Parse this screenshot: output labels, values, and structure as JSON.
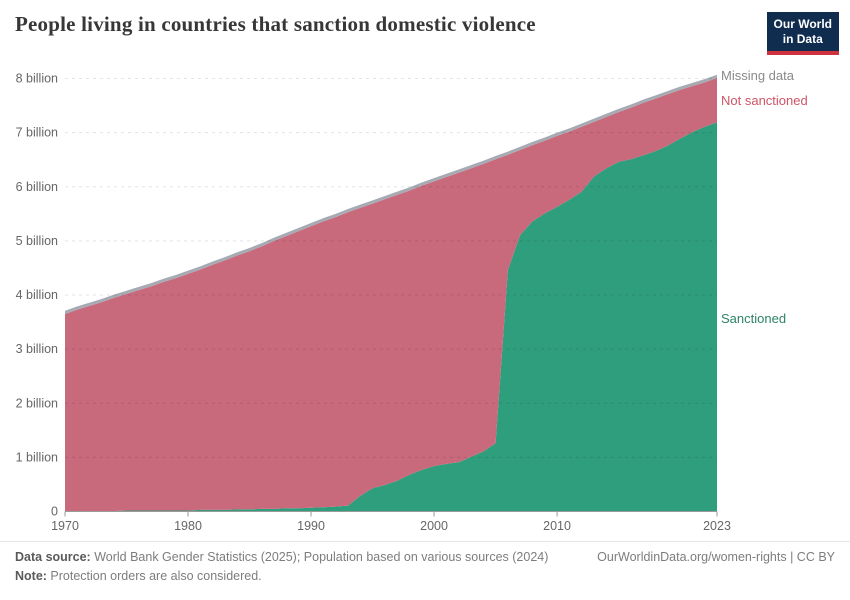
{
  "header": {
    "title": "People living in countries that sanction domestic violence",
    "logo_line1": "Our World",
    "logo_line2": "in Data"
  },
  "footer": {
    "data_source_label": "Data source:",
    "data_source_text": " World Bank Gender Statistics (2025); Population based on various sources (2024)",
    "note_label": "Note:",
    "note_text": " Protection orders are also considered.",
    "link_text": "OurWorldinData.org/women-rights | CC BY"
  },
  "chart_data": {
    "type": "area",
    "stacked": true,
    "title": "People living in countries that sanction domestic violence",
    "xlabel": "",
    "ylabel": "",
    "unit": "billion people",
    "grid": true,
    "legend_position": "right",
    "ylim": [
      0,
      8
    ],
    "xlim": [
      1970,
      2023
    ],
    "x_ticks": [
      1970,
      1980,
      1990,
      2000,
      2010,
      2023
    ],
    "y_ticks": [
      {
        "v": 0,
        "label": "0"
      },
      {
        "v": 1,
        "label": "1 billion"
      },
      {
        "v": 2,
        "label": "2 billion"
      },
      {
        "v": 3,
        "label": "3 billion"
      },
      {
        "v": 4,
        "label": "4 billion"
      },
      {
        "v": 5,
        "label": "5 billion"
      },
      {
        "v": 6,
        "label": "6 billion"
      },
      {
        "v": 7,
        "label": "7 billion"
      },
      {
        "v": 8,
        "label": "8 billion"
      }
    ],
    "x": [
      1970,
      1971,
      1972,
      1973,
      1974,
      1975,
      1976,
      1977,
      1978,
      1979,
      1980,
      1981,
      1982,
      1983,
      1984,
      1985,
      1986,
      1987,
      1988,
      1989,
      1990,
      1991,
      1992,
      1993,
      1994,
      1995,
      1996,
      1997,
      1998,
      1999,
      2000,
      2001,
      2002,
      2003,
      2004,
      2005,
      2006,
      2007,
      2008,
      2009,
      2010,
      2011,
      2012,
      2013,
      2014,
      2015,
      2016,
      2017,
      2018,
      2019,
      2020,
      2021,
      2022,
      2023
    ],
    "series": [
      {
        "name": "Sanctioned",
        "color": "#2f9e7c",
        "values": [
          0.0,
          0.0,
          0.0,
          0.0,
          0.0,
          0.01,
          0.01,
          0.01,
          0.01,
          0.01,
          0.01,
          0.02,
          0.02,
          0.02,
          0.03,
          0.03,
          0.04,
          0.04,
          0.05,
          0.05,
          0.06,
          0.07,
          0.08,
          0.1,
          0.28,
          0.42,
          0.48,
          0.56,
          0.67,
          0.76,
          0.83,
          0.87,
          0.9,
          1.0,
          1.1,
          1.25,
          4.45,
          5.1,
          5.35,
          5.5,
          5.62,
          5.75,
          5.9,
          6.18,
          6.33,
          6.45,
          6.5,
          6.57,
          6.65,
          6.75,
          6.88,
          7.0,
          7.1,
          7.18
        ]
      },
      {
        "name": "Not sanctioned",
        "color": "#c8697c",
        "values": [
          3.64,
          3.72,
          3.79,
          3.86,
          3.94,
          4.0,
          4.07,
          4.14,
          4.22,
          4.29,
          4.37,
          4.44,
          4.53,
          4.61,
          4.69,
          4.77,
          4.85,
          4.95,
          5.03,
          5.12,
          5.2,
          5.28,
          5.35,
          5.42,
          5.32,
          5.26,
          5.28,
          5.28,
          5.25,
          5.25,
          5.26,
          5.3,
          5.35,
          5.33,
          5.31,
          5.25,
          2.13,
          1.57,
          1.41,
          1.34,
          1.31,
          1.26,
          1.2,
          1.01,
          0.95,
          0.92,
          0.95,
          0.97,
          0.97,
          0.95,
          0.9,
          0.85,
          0.82,
          0.82
        ]
      },
      {
        "name": "Missing data",
        "color": "#a6abb3",
        "values": [
          0.06,
          0.06,
          0.06,
          0.06,
          0.06,
          0.06,
          0.06,
          0.06,
          0.06,
          0.06,
          0.06,
          0.06,
          0.06,
          0.06,
          0.06,
          0.06,
          0.06,
          0.06,
          0.06,
          0.06,
          0.06,
          0.06,
          0.06,
          0.06,
          0.06,
          0.06,
          0.06,
          0.06,
          0.06,
          0.06,
          0.06,
          0.06,
          0.06,
          0.06,
          0.06,
          0.06,
          0.06,
          0.06,
          0.06,
          0.06,
          0.06,
          0.06,
          0.06,
          0.06,
          0.06,
          0.06,
          0.06,
          0.06,
          0.06,
          0.06,
          0.06,
          0.06,
          0.06,
          0.06
        ]
      }
    ],
    "legend": [
      {
        "label": "Missing data",
        "color": "#8a8a8a"
      },
      {
        "label": "Not sanctioned",
        "color": "#cf5468"
      },
      {
        "label": "Sanctioned",
        "color": "#2c8465"
      }
    ]
  }
}
